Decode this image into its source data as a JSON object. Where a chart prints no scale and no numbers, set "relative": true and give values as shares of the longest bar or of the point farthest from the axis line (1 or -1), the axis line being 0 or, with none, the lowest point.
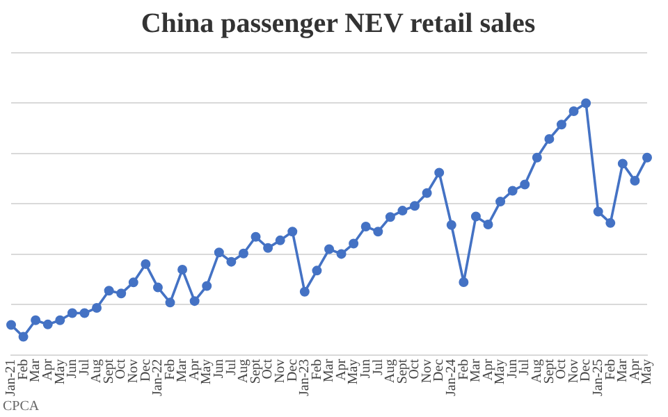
{
  "chart_data": {
    "type": "line",
    "title": "China passenger NEV retail sales",
    "categories": [
      "Jan-21",
      "Feb",
      "Mar",
      "Apr",
      "May",
      "Jun",
      "Jul",
      "Aug",
      "Sept",
      "Oct",
      "Nov",
      "Dec",
      "Jan-22",
      "Feb",
      "Mar",
      "Apr",
      "May",
      "Jun",
      "Jul",
      "Aug",
      "Sept",
      "Oct",
      "Nov",
      "Dec",
      "Jan-23",
      "Feb",
      "Mar",
      "Apr",
      "May",
      "Jun",
      "Jul",
      "Aug",
      "Sept",
      "Oct",
      "Nov",
      "Dec",
      "Jan-24",
      "Feb",
      "Mar",
      "Apr",
      "May",
      "Jun",
      "Jul",
      "Aug",
      "Sept",
      "Oct",
      "Nov",
      "Dec",
      "Jan-25",
      "Feb",
      "Mar",
      "Apr",
      "May"
    ],
    "series": [
      {
        "color": "#4472c4",
        "values": [
          0.119,
          0.072,
          0.138,
          0.121,
          0.138,
          0.166,
          0.166,
          0.187,
          0.255,
          0.244,
          0.288,
          0.361,
          0.268,
          0.208,
          0.339,
          0.214,
          0.274,
          0.407,
          0.37,
          0.403,
          0.469,
          0.425,
          0.455,
          0.49,
          0.251,
          0.335,
          0.42,
          0.401,
          0.442,
          0.51,
          0.49,
          0.548,
          0.573,
          0.592,
          0.643,
          0.724,
          0.516,
          0.289,
          0.55,
          0.518,
          0.609,
          0.652,
          0.677,
          0.784,
          0.858,
          0.915,
          0.968,
          1,
          0.569,
          0.524,
          0.76,
          0.692,
          0.784
        ]
      }
    ],
    "relative": true,
    "grid": "y",
    "marker": "circle",
    "line_style": "solid",
    "annotations": [
      "CPCA"
    ]
  }
}
